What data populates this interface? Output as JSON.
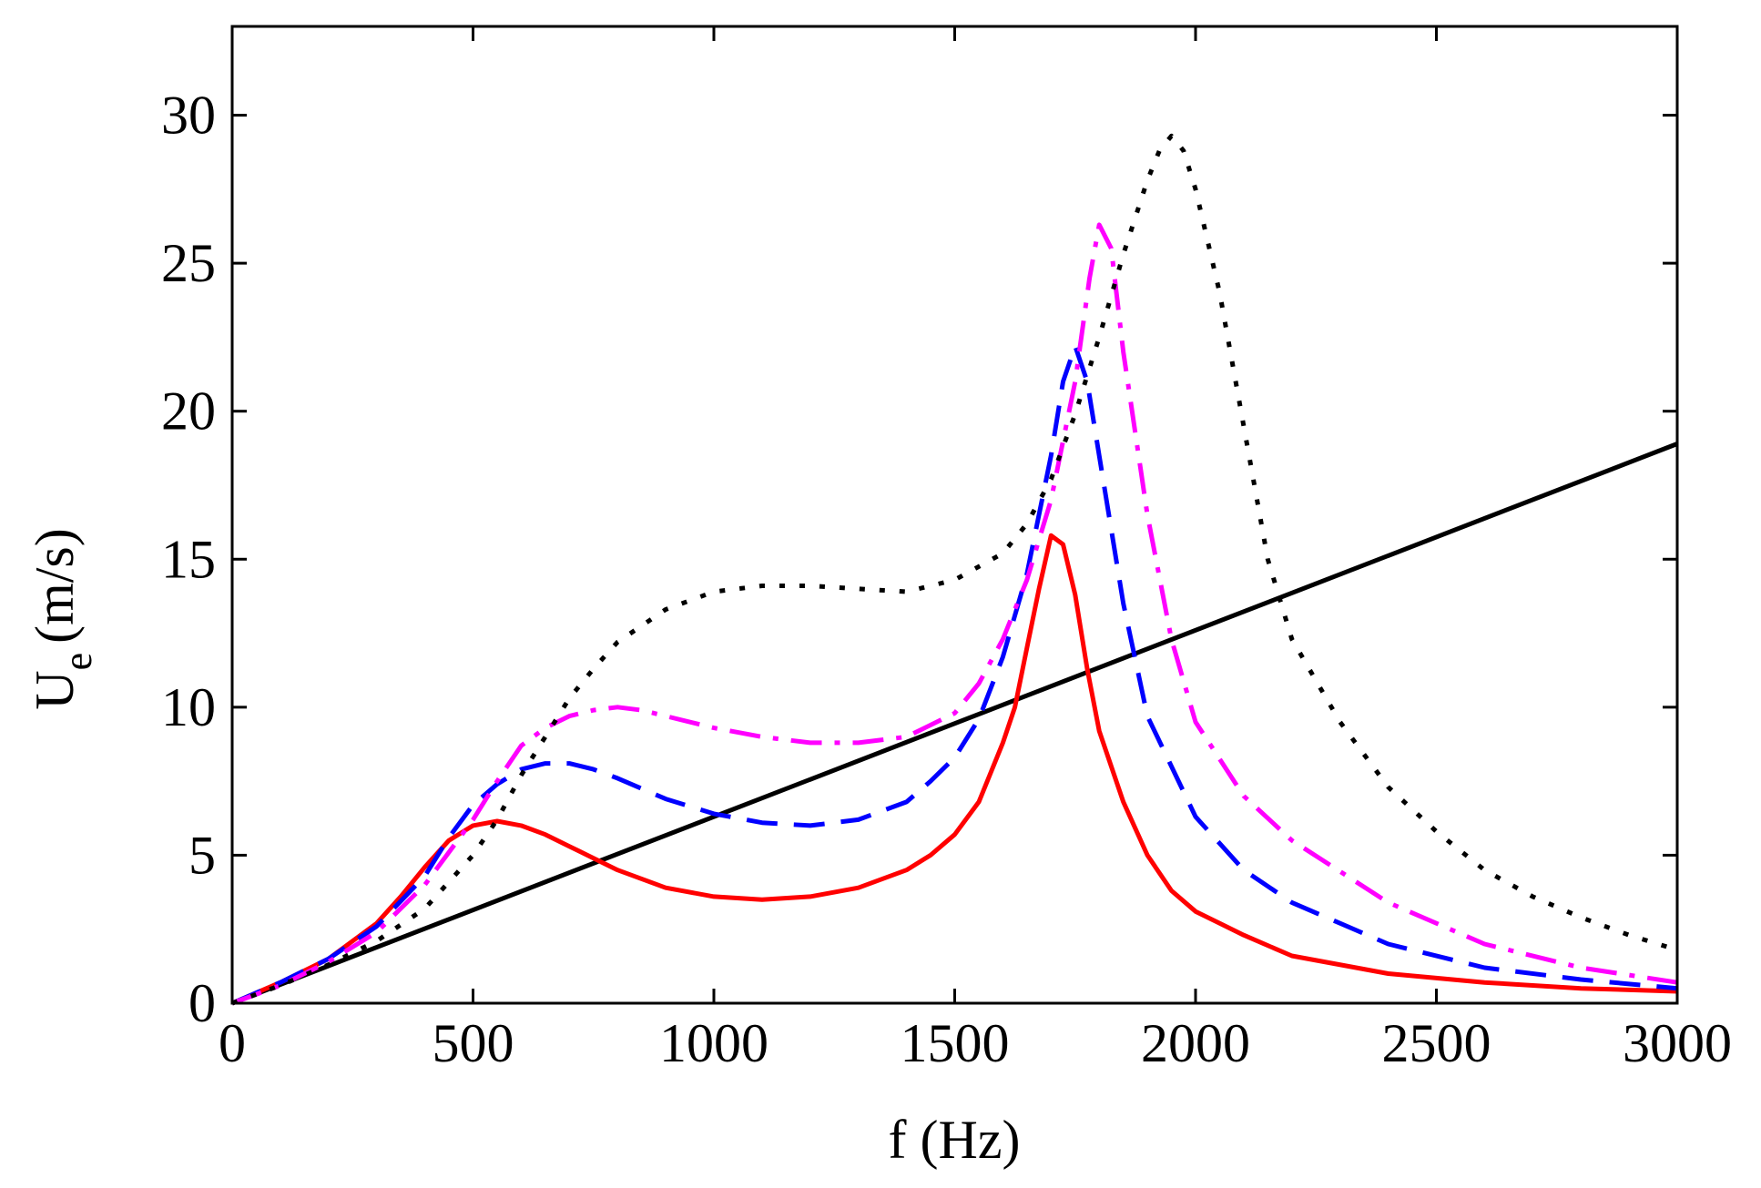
{
  "chart_data": {
    "type": "line",
    "title": "",
    "xlabel": "f (Hz)",
    "ylabel": {
      "main": "U",
      "subscript": "e",
      "unit": "(m/s)"
    },
    "xlim": [
      0,
      3000
    ],
    "ylim": [
      0,
      33
    ],
    "xticks": [
      "0",
      "500",
      "1000",
      "1500",
      "2000",
      "2500",
      "3000"
    ],
    "yticks": [
      "0",
      "5",
      "10",
      "15",
      "20",
      "25",
      "30"
    ],
    "grid": false,
    "legend": null,
    "series": [
      {
        "name": "solid-black-linear",
        "color": "#000000",
        "dash": "solid",
        "x": [
          0,
          3000
        ],
        "y": [
          0,
          18.9
        ]
      },
      {
        "name": "solid-red",
        "color": "#ff0000",
        "dash": "solid",
        "x": [
          0,
          100,
          200,
          300,
          350,
          400,
          450,
          500,
          550,
          600,
          650,
          700,
          800,
          900,
          1000,
          1100,
          1200,
          1300,
          1400,
          1450,
          1500,
          1550,
          1600,
          1625,
          1650,
          1675,
          1700,
          1725,
          1750,
          1775,
          1800,
          1850,
          1900,
          1950,
          2000,
          2100,
          2200,
          2400,
          2600,
          2800,
          3000
        ],
        "y": [
          0,
          0.7,
          1.5,
          2.7,
          3.6,
          4.6,
          5.5,
          6.0,
          6.15,
          6.0,
          5.7,
          5.3,
          4.5,
          3.9,
          3.6,
          3.5,
          3.6,
          3.9,
          4.5,
          5.0,
          5.7,
          6.8,
          8.8,
          10.0,
          12.0,
          14.0,
          15.8,
          15.5,
          13.8,
          11.3,
          9.2,
          6.8,
          5.0,
          3.8,
          3.1,
          2.3,
          1.6,
          1.0,
          0.7,
          0.5,
          0.4
        ]
      },
      {
        "name": "dashed-blue",
        "color": "#0000ff",
        "dash": "dashed",
        "x": [
          0,
          100,
          200,
          300,
          400,
          450,
          500,
          550,
          600,
          650,
          700,
          750,
          800,
          900,
          1000,
          1100,
          1200,
          1300,
          1400,
          1450,
          1500,
          1550,
          1600,
          1650,
          1700,
          1725,
          1750,
          1775,
          1800,
          1850,
          1900,
          2000,
          2100,
          2200,
          2400,
          2600,
          2800,
          3000
        ],
        "y": [
          0,
          0.7,
          1.5,
          2.6,
          4.3,
          5.6,
          6.7,
          7.4,
          7.9,
          8.1,
          8.1,
          7.9,
          7.6,
          6.9,
          6.4,
          6.1,
          6.0,
          6.2,
          6.8,
          7.5,
          8.3,
          9.6,
          11.7,
          14.5,
          18.5,
          21.0,
          22.2,
          21.0,
          18.5,
          13.5,
          9.7,
          6.3,
          4.5,
          3.4,
          2.0,
          1.2,
          0.8,
          0.5
        ]
      },
      {
        "name": "dashdot-magenta",
        "color": "#ff00ff",
        "dash": "dashdot",
        "x": [
          0,
          100,
          200,
          300,
          400,
          500,
          550,
          600,
          650,
          700,
          750,
          800,
          850,
          900,
          1000,
          1100,
          1200,
          1300,
          1400,
          1500,
          1550,
          1600,
          1650,
          1700,
          1750,
          1780,
          1800,
          1825,
          1850,
          1900,
          1950,
          2000,
          2100,
          2200,
          2400,
          2600,
          2800,
          3000
        ],
        "y": [
          0,
          0.6,
          1.4,
          2.4,
          4.0,
          6.2,
          7.5,
          8.7,
          9.3,
          9.7,
          9.9,
          10.0,
          9.9,
          9.7,
          9.3,
          9.0,
          8.8,
          8.8,
          9.0,
          9.8,
          10.8,
          12.3,
          14.3,
          17.0,
          21.0,
          24.5,
          26.3,
          25.5,
          22.0,
          16.5,
          12.3,
          9.5,
          7.0,
          5.5,
          3.4,
          2.0,
          1.2,
          0.7
        ]
      },
      {
        "name": "dotted-black",
        "color": "#000000",
        "dash": "dotted",
        "x": [
          0,
          100,
          200,
          300,
          400,
          500,
          550,
          600,
          650,
          700,
          750,
          800,
          900,
          1000,
          1100,
          1200,
          1300,
          1400,
          1500,
          1600,
          1650,
          1700,
          1750,
          1800,
          1850,
          1900,
          1925,
          1950,
          1975,
          2000,
          2050,
          2100,
          2150,
          2200,
          2300,
          2400,
          2500,
          2600,
          2700,
          2800,
          2900,
          3000
        ],
        "y": [
          0,
          0.6,
          1.3,
          2.1,
          3.2,
          5.0,
          6.2,
          7.7,
          9.0,
          10.3,
          11.3,
          12.2,
          13.3,
          13.9,
          14.1,
          14.1,
          14.0,
          13.9,
          14.3,
          15.2,
          16.2,
          17.7,
          19.9,
          22.5,
          25.3,
          27.8,
          28.8,
          29.3,
          28.8,
          27.5,
          24.0,
          19.5,
          15.0,
          12.3,
          9.5,
          7.3,
          5.8,
          4.5,
          3.6,
          2.9,
          2.3,
          1.8
        ]
      }
    ]
  }
}
